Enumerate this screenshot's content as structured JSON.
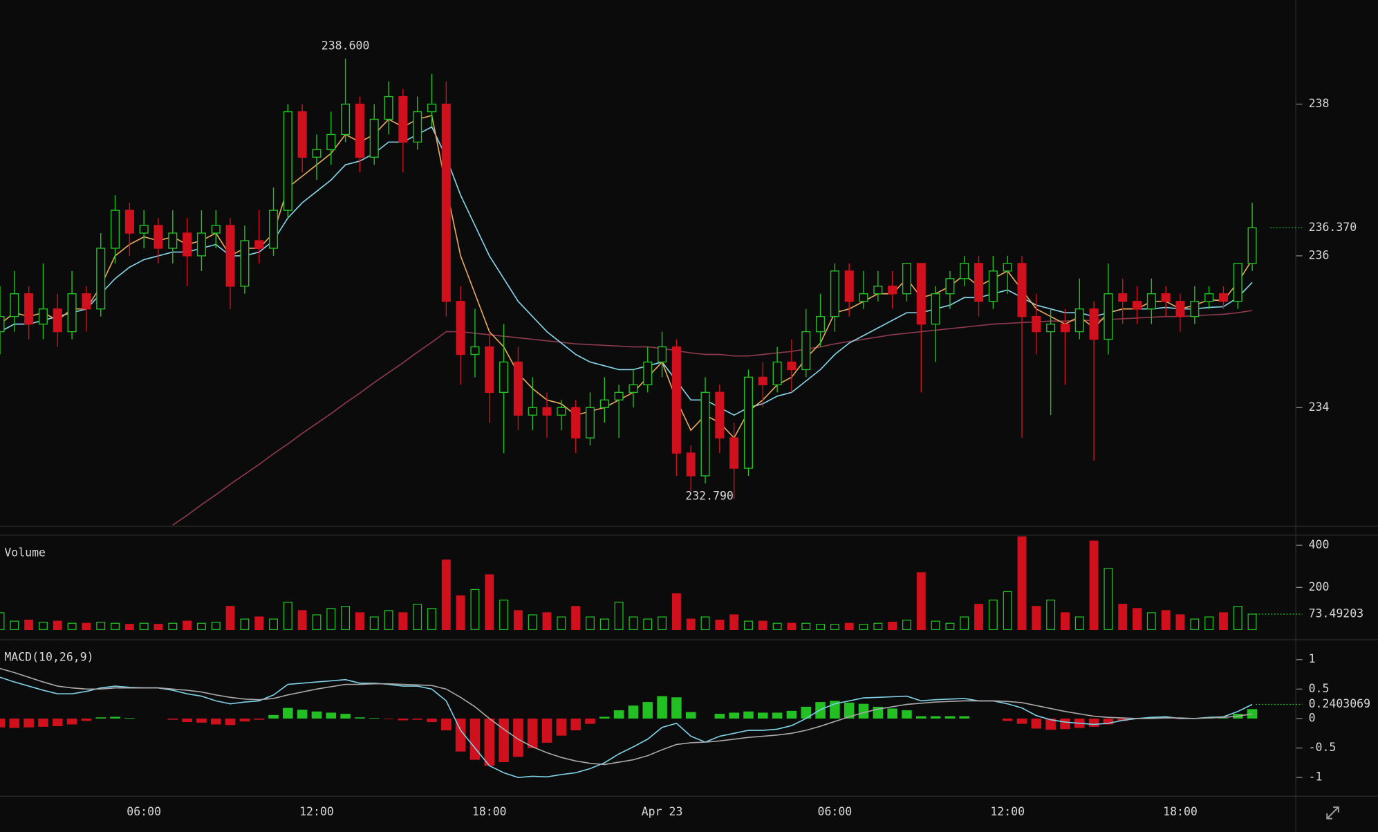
{
  "chart_data": [
    {
      "type": "candlestick",
      "xlim": [
        0,
        90
      ],
      "ylim": [
        232.44,
        239.37
      ],
      "yticks": [
        234,
        236,
        238
      ],
      "up_color": "#22c022",
      "down_color": "#d0101c",
      "open": [
        235.0,
        235.2,
        235.5,
        235.1,
        235.3,
        235.0,
        235.5,
        235.3,
        236.1,
        236.6,
        236.3,
        236.4,
        236.1,
        236.3,
        236.0,
        236.3,
        236.4,
        235.6,
        236.2,
        236.1,
        236.6,
        237.9,
        237.3,
        237.4,
        237.6,
        238.0,
        237.3,
        237.8,
        238.1,
        237.5,
        237.9,
        238.0,
        235.4,
        234.7,
        234.8,
        234.2,
        234.6,
        233.9,
        234.0,
        233.9,
        234.0,
        233.6,
        234.0,
        234.1,
        234.2,
        234.3,
        234.6,
        234.8,
        233.4,
        233.1,
        234.2,
        233.6,
        233.2,
        234.4,
        234.3,
        234.6,
        234.5,
        235.0,
        235.2,
        235.8,
        235.4,
        235.5,
        235.6,
        235.5,
        235.9,
        235.1,
        235.5,
        235.7,
        235.9,
        235.4,
        235.8,
        235.9,
        235.2,
        235.0,
        235.1,
        235.0,
        235.3,
        234.9,
        235.5,
        235.4,
        235.3,
        235.5,
        235.4,
        235.2,
        235.4,
        235.5,
        235.4,
        235.9
      ],
      "high": [
        235.6,
        235.8,
        235.6,
        235.9,
        235.5,
        235.8,
        235.6,
        236.3,
        236.8,
        236.7,
        236.6,
        236.5,
        236.6,
        236.5,
        236.6,
        236.6,
        236.5,
        236.4,
        236.6,
        236.9,
        238.0,
        238.0,
        237.6,
        237.9,
        238.6,
        238.1,
        238.0,
        238.3,
        238.2,
        238.1,
        238.4,
        238.3,
        235.6,
        235.3,
        235.0,
        235.1,
        234.8,
        234.4,
        234.2,
        234.1,
        234.1,
        234.2,
        234.4,
        234.3,
        234.5,
        234.8,
        235.0,
        234.9,
        233.5,
        234.4,
        234.3,
        233.8,
        234.5,
        234.6,
        234.8,
        234.9,
        235.3,
        235.5,
        235.9,
        235.9,
        235.8,
        235.8,
        235.8,
        235.9,
        235.9,
        235.6,
        235.8,
        236.0,
        236.0,
        236.0,
        236.0,
        236.0,
        235.5,
        235.3,
        235.3,
        235.7,
        235.4,
        235.9,
        235.7,
        235.6,
        235.7,
        235.6,
        235.5,
        235.6,
        235.6,
        235.6,
        235.9,
        236.7
      ],
      "low": [
        234.7,
        235.0,
        234.9,
        234.9,
        234.8,
        234.9,
        235.0,
        235.2,
        235.9,
        236.0,
        236.1,
        235.9,
        235.9,
        235.6,
        235.8,
        236.1,
        235.3,
        235.5,
        235.9,
        236.0,
        236.5,
        237.1,
        237.0,
        237.2,
        237.5,
        237.1,
        237.2,
        237.6,
        237.1,
        237.4,
        237.7,
        235.2,
        234.3,
        234.4,
        233.8,
        233.4,
        233.7,
        233.7,
        233.6,
        233.7,
        233.4,
        233.5,
        233.8,
        233.6,
        234.0,
        234.2,
        234.4,
        233.1,
        232.9,
        233.0,
        233.4,
        232.79,
        233.1,
        234.0,
        234.2,
        234.2,
        234.4,
        234.8,
        235.0,
        235.2,
        235.3,
        235.4,
        235.3,
        235.4,
        234.2,
        234.6,
        235.3,
        235.6,
        235.2,
        235.3,
        235.5,
        233.6,
        234.7,
        233.9,
        234.3,
        234.9,
        233.3,
        234.7,
        235.1,
        235.1,
        235.1,
        235.2,
        235.0,
        235.1,
        235.3,
        235.3,
        235.3,
        235.8
      ],
      "close": [
        235.2,
        235.5,
        235.1,
        235.3,
        235.0,
        235.5,
        235.3,
        236.1,
        236.6,
        236.3,
        236.4,
        236.1,
        236.3,
        236.0,
        236.3,
        236.4,
        235.6,
        236.2,
        236.1,
        236.6,
        237.9,
        237.3,
        237.4,
        237.6,
        238.0,
        237.3,
        237.8,
        238.1,
        237.5,
        237.9,
        238.0,
        235.4,
        234.7,
        234.8,
        234.2,
        234.6,
        233.9,
        234.0,
        233.9,
        234.0,
        233.6,
        234.0,
        234.1,
        234.2,
        234.3,
        234.6,
        234.8,
        233.4,
        233.1,
        234.2,
        233.6,
        233.2,
        234.4,
        234.3,
        234.6,
        234.5,
        235.0,
        235.2,
        235.8,
        235.4,
        235.5,
        235.6,
        235.5,
        235.9,
        235.1,
        235.5,
        235.7,
        235.9,
        235.4,
        235.8,
        235.9,
        235.2,
        235.0,
        235.1,
        235.0,
        235.3,
        234.9,
        235.5,
        235.4,
        235.3,
        235.5,
        235.4,
        235.2,
        235.4,
        235.5,
        235.4,
        235.9,
        236.37
      ],
      "series": [
        {
          "color": "#e8a860",
          "values": [
            235.1,
            235.25,
            235.2,
            235.25,
            235.15,
            235.3,
            235.3,
            235.6,
            236.0,
            236.15,
            236.25,
            236.2,
            236.25,
            236.15,
            236.2,
            236.3,
            236.0,
            236.1,
            236.1,
            236.3,
            236.9,
            237.05,
            237.2,
            237.35,
            237.6,
            237.5,
            237.6,
            237.8,
            237.7,
            237.8,
            237.85,
            236.9,
            236.0,
            235.5,
            235.0,
            234.8,
            234.45,
            234.25,
            234.1,
            234.05,
            233.9,
            233.95,
            234.0,
            234.1,
            234.2,
            234.4,
            234.6,
            234.1,
            233.7,
            233.9,
            233.8,
            233.6,
            233.95,
            234.1,
            234.3,
            234.4,
            234.65,
            234.85,
            235.25,
            235.3,
            235.4,
            235.5,
            235.5,
            235.7,
            235.45,
            235.5,
            235.6,
            235.75,
            235.6,
            235.7,
            235.8,
            235.55,
            235.3,
            235.2,
            235.1,
            235.2,
            235.05,
            235.25,
            235.3,
            235.3,
            235.4,
            235.4,
            235.3,
            235.35,
            235.42,
            235.41,
            235.65,
            235.95
          ]
        },
        {
          "color": "#86d4e8",
          "values": [
            235.0,
            235.1,
            235.1,
            235.15,
            235.2,
            235.25,
            235.3,
            235.5,
            235.7,
            235.85,
            235.95,
            236.0,
            236.05,
            236.05,
            236.1,
            236.15,
            236.0,
            236.0,
            236.05,
            236.2,
            236.5,
            236.7,
            236.85,
            237.0,
            237.2,
            237.25,
            237.35,
            237.5,
            237.5,
            237.6,
            237.7,
            237.3,
            236.8,
            236.4,
            236.0,
            235.7,
            235.4,
            235.2,
            235.0,
            234.85,
            234.7,
            234.6,
            234.55,
            234.5,
            234.5,
            234.55,
            234.6,
            234.35,
            234.1,
            234.1,
            234.0,
            233.9,
            234.0,
            234.05,
            234.15,
            234.2,
            234.35,
            234.5,
            234.7,
            234.85,
            234.95,
            235.05,
            235.15,
            235.25,
            235.25,
            235.3,
            235.35,
            235.45,
            235.45,
            235.5,
            235.55,
            235.45,
            235.35,
            235.3,
            235.25,
            235.25,
            235.2,
            235.25,
            235.3,
            235.3,
            235.3,
            235.32,
            235.3,
            235.3,
            235.32,
            235.33,
            235.45,
            235.65
          ]
        },
        {
          "color": "#8c3a4c",
          "values": [
            null,
            null,
            null,
            null,
            null,
            null,
            null,
            null,
            null,
            null,
            null,
            null,
            232.45,
            232.58,
            232.72,
            232.85,
            232.99,
            233.12,
            233.25,
            233.39,
            233.52,
            233.66,
            233.79,
            233.92,
            234.06,
            234.19,
            234.33,
            234.46,
            234.59,
            234.73,
            234.86,
            235.0,
            235.0,
            234.98,
            234.96,
            234.94,
            234.92,
            234.9,
            234.88,
            234.86,
            234.84,
            234.83,
            234.82,
            234.81,
            234.8,
            234.8,
            234.78,
            234.75,
            234.72,
            234.7,
            234.7,
            234.68,
            234.68,
            234.7,
            234.72,
            234.74,
            234.77,
            234.8,
            234.84,
            234.87,
            234.9,
            234.93,
            234.96,
            234.98,
            235.0,
            235.02,
            235.04,
            235.06,
            235.08,
            235.1,
            235.11,
            235.12,
            235.13,
            235.14,
            235.14,
            235.15,
            235.15,
            235.16,
            235.17,
            235.18,
            235.19,
            235.2,
            235.2,
            235.21,
            235.22,
            235.23,
            235.25,
            235.28
          ]
        }
      ],
      "annotations": [
        {
          "value": 238.6,
          "label": "238.600"
        },
        {
          "value": 232.79,
          "label": "232.790"
        },
        {
          "value": 236.37,
          "label": "236.370"
        }
      ]
    },
    {
      "type": "bar",
      "title": "Volume",
      "xlim": [
        0,
        90
      ],
      "ylim": [
        0,
        450
      ],
      "yticks": [
        200,
        400
      ],
      "up_color": "#22c022",
      "down_color": "#d0101c",
      "values": [
        80,
        40,
        45,
        35,
        40,
        30,
        30,
        35,
        30,
        25,
        30,
        25,
        30,
        40,
        30,
        35,
        110,
        50,
        60,
        50,
        130,
        90,
        70,
        100,
        110,
        80,
        60,
        90,
        80,
        120,
        100,
        330,
        160,
        190,
        260,
        140,
        90,
        70,
        80,
        60,
        110,
        60,
        50,
        130,
        60,
        50,
        60,
        170,
        50,
        60,
        45,
        70,
        40,
        40,
        30,
        30,
        30,
        25,
        25,
        30,
        25,
        30,
        35,
        45,
        270,
        40,
        30,
        60,
        120,
        140,
        180,
        440,
        110,
        140,
        80,
        60,
        420,
        290,
        120,
        100,
        80,
        90,
        70,
        50,
        60,
        80,
        110,
        73.49203
      ]
    },
    {
      "type": "macd",
      "title": "MACD(10,26,9)",
      "xlim": [
        0,
        90
      ],
      "ylim": [
        -1.31,
        1.3
      ],
      "yticks": [
        1,
        0.5,
        0,
        -0.5,
        -1
      ],
      "xticks": [
        {
          "value": 10,
          "label": "06:00"
        },
        {
          "value": 22,
          "label": "12:00"
        },
        {
          "value": 34,
          "label": "18:00"
        },
        {
          "value": 46,
          "label": "Apr 23"
        },
        {
          "value": 58,
          "label": "06:00"
        },
        {
          "value": 70,
          "label": "12:00"
        },
        {
          "value": 82,
          "label": "18:00"
        }
      ],
      "up_color": "#22c022",
      "down_color": "#d0101c",
      "series": [
        {
          "color": "#7fd0e6",
          "values": [
            0.7,
            0.62,
            0.55,
            0.48,
            0.42,
            0.42,
            0.46,
            0.52,
            0.55,
            0.53,
            0.52,
            0.52,
            0.48,
            0.42,
            0.38,
            0.3,
            0.25,
            0.28,
            0.3,
            0.4,
            0.58,
            0.6,
            0.62,
            0.64,
            0.66,
            0.6,
            0.6,
            0.58,
            0.55,
            0.55,
            0.5,
            0.3,
            -0.2,
            -0.5,
            -0.8,
            -0.92,
            -1.0,
            -0.98,
            -0.99,
            -0.95,
            -0.92,
            -0.85,
            -0.75,
            -0.6,
            -0.48,
            -0.35,
            -0.15,
            -0.08,
            -0.3,
            -0.4,
            -0.3,
            -0.25,
            -0.2,
            -0.2,
            -0.18,
            -0.12,
            0.0,
            0.15,
            0.25,
            0.3,
            0.35,
            0.36,
            0.37,
            0.38,
            0.3,
            0.32,
            0.33,
            0.34,
            0.3,
            0.3,
            0.25,
            0.18,
            0.05,
            -0.02,
            -0.06,
            -0.08,
            -0.1,
            -0.08,
            -0.03,
            0.0,
            0.02,
            0.03,
            0.0,
            0.0,
            0.02,
            0.03,
            0.12,
            0.2403069
          ]
        },
        {
          "color": "#a8a8a8",
          "values": [
            0.85,
            0.78,
            0.7,
            0.62,
            0.55,
            0.52,
            0.5,
            0.5,
            0.52,
            0.52,
            0.52,
            0.52,
            0.5,
            0.48,
            0.45,
            0.4,
            0.36,
            0.33,
            0.32,
            0.34,
            0.4,
            0.45,
            0.5,
            0.54,
            0.58,
            0.58,
            0.59,
            0.59,
            0.58,
            0.57,
            0.56,
            0.5,
            0.36,
            0.2,
            0.0,
            -0.18,
            -0.35,
            -0.48,
            -0.58,
            -0.66,
            -0.72,
            -0.76,
            -0.78,
            -0.74,
            -0.7,
            -0.63,
            -0.53,
            -0.44,
            -0.41,
            -0.4,
            -0.38,
            -0.35,
            -0.32,
            -0.3,
            -0.28,
            -0.25,
            -0.2,
            -0.13,
            -0.05,
            0.03,
            0.1,
            0.16,
            0.2,
            0.24,
            0.26,
            0.28,
            0.29,
            0.3,
            0.3,
            0.3,
            0.29,
            0.27,
            0.22,
            0.17,
            0.12,
            0.08,
            0.04,
            0.02,
            0.01,
            0.0,
            0.0,
            0.01,
            0.01,
            0.0,
            0.01,
            0.02,
            0.04,
            0.08
          ]
        }
      ],
      "histogram": [
        -0.15,
        -0.16,
        -0.15,
        -0.14,
        -0.13,
        -0.1,
        -0.04,
        0.02,
        0.03,
        0.01,
        0,
        0,
        -0.02,
        -0.06,
        -0.07,
        -0.1,
        -0.11,
        -0.05,
        -0.02,
        0.06,
        0.18,
        0.15,
        0.12,
        0.1,
        0.08,
        0.02,
        0.01,
        -0.01,
        -0.03,
        -0.02,
        -0.06,
        -0.2,
        -0.56,
        -0.7,
        -0.8,
        -0.74,
        -0.65,
        -0.5,
        -0.41,
        -0.29,
        -0.2,
        -0.09,
        0.03,
        0.14,
        0.22,
        0.28,
        0.38,
        0.36,
        0.11,
        0,
        0.08,
        0.1,
        0.12,
        0.1,
        0.1,
        0.13,
        0.2,
        0.28,
        0.3,
        0.27,
        0.25,
        0.2,
        0.17,
        0.14,
        0.04,
        0.04,
        0.04,
        0.04,
        0,
        0,
        -0.04,
        -0.09,
        -0.17,
        -0.19,
        -0.18,
        -0.16,
        -0.14,
        -0.1,
        -0.04,
        0,
        0.02,
        0.02,
        -0.01,
        0,
        0.01,
        0.01,
        0.08,
        0.16
      ]
    }
  ]
}
